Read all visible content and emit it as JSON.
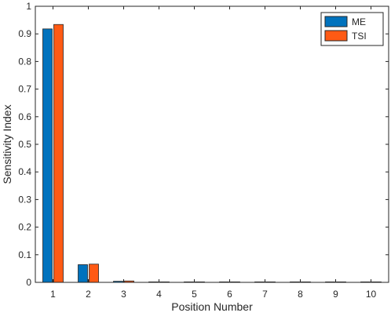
{
  "chart_data": {
    "type": "bar",
    "categories": [
      "1",
      "2",
      "3",
      "4",
      "5",
      "6",
      "7",
      "8",
      "9",
      "10"
    ],
    "series": [
      {
        "name": "ME",
        "color": "#0072BD",
        "values": [
          0.918,
          0.064,
          0.004,
          0.0015,
          0.0005,
          0.0003,
          0.0002,
          0.0002,
          0.0001,
          0.0001
        ]
      },
      {
        "name": "TSI",
        "color": "#FF5A14",
        "values": [
          0.934,
          0.066,
          0.005,
          0.0015,
          0.0005,
          0.0003,
          0.0002,
          0.0002,
          0.0001,
          0.0001
        ]
      }
    ],
    "title": "",
    "xlabel": "Position Number",
    "ylabel": "Sensitivity Index",
    "ylim": [
      0,
      1
    ],
    "yticks": [
      "0",
      "0.1",
      "0.2",
      "0.3",
      "0.4",
      "0.5",
      "0.6",
      "0.7",
      "0.8",
      "0.9",
      "1"
    ],
    "grid": false,
    "legend_position": "top-right",
    "legend_entries": [
      "ME",
      "TSI"
    ]
  }
}
